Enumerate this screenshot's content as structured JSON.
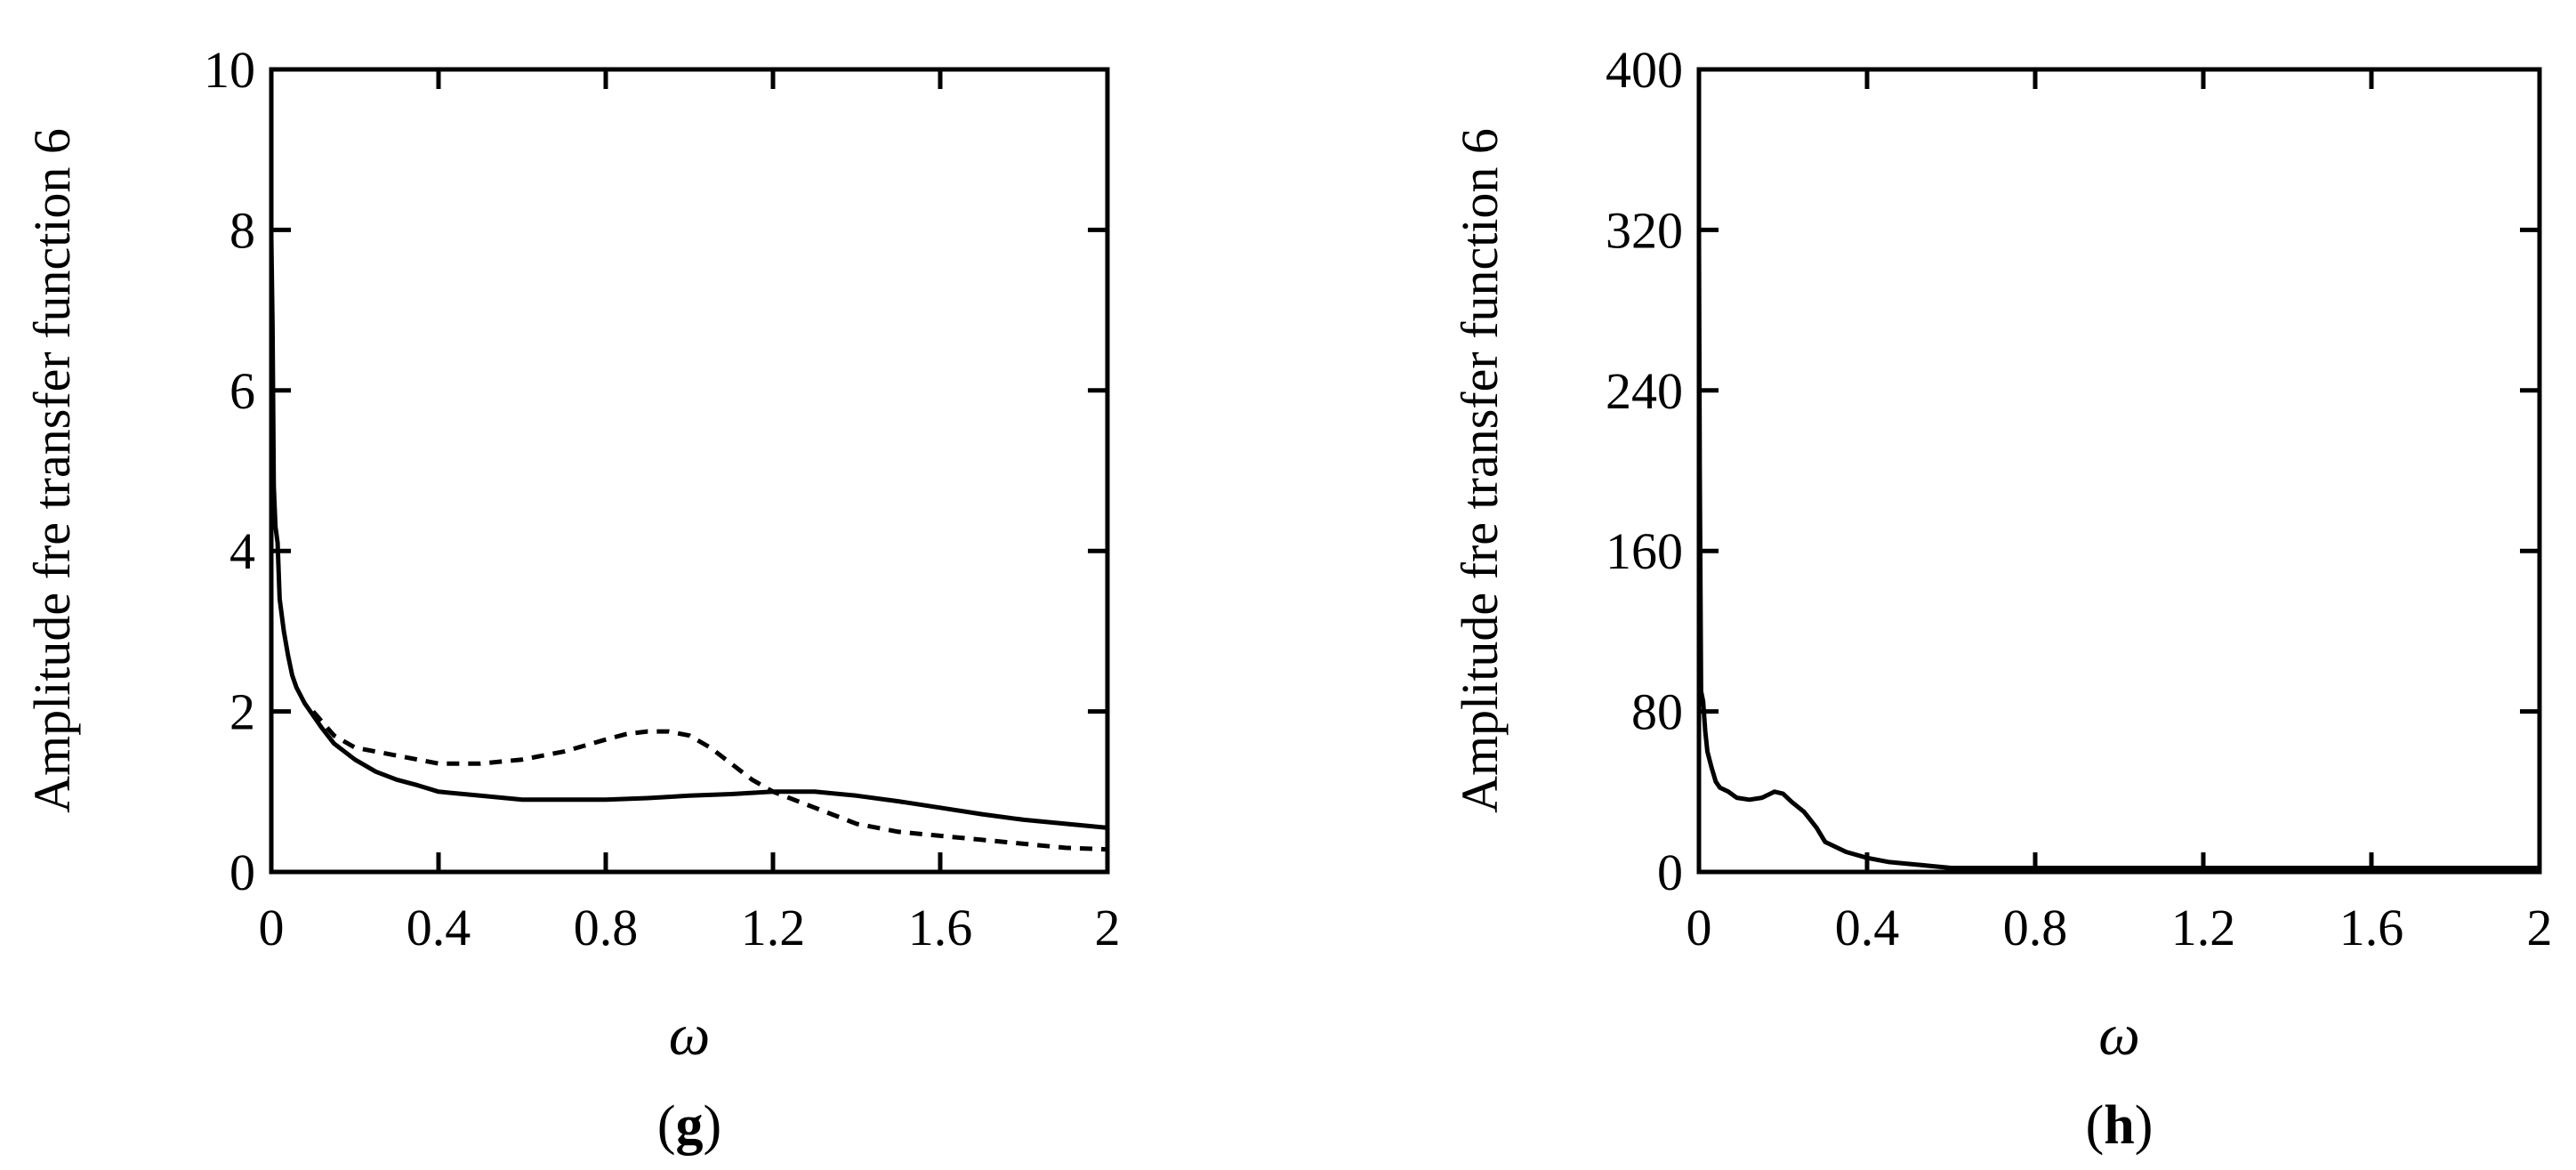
{
  "chart_data": [
    {
      "type": "line",
      "panel": "g",
      "panel_label_open": "(",
      "panel_label_letter": "g",
      "panel_label_close": ")",
      "xlabel": "ω",
      "ylabel": "Amplitude fre transfer function 6",
      "xlim": [
        0,
        2
      ],
      "ylim": [
        0,
        10
      ],
      "xticks": [
        0,
        0.4,
        0.8,
        1.2,
        1.6,
        2
      ],
      "xtick_labels": [
        "0",
        "0.4",
        "0.8",
        "1.2",
        "1.6",
        "2"
      ],
      "yticks": [
        0,
        2,
        4,
        6,
        8,
        10
      ],
      "ytick_labels": [
        "0",
        "2",
        "4",
        "6",
        "8",
        "10"
      ],
      "grid": false,
      "series": [
        {
          "style": "solid",
          "x": [
            0.0,
            0.003,
            0.006,
            0.01,
            0.015,
            0.02,
            0.03,
            0.04,
            0.05,
            0.06,
            0.08,
            0.1,
            0.12,
            0.15,
            0.2,
            0.25,
            0.3,
            0.35,
            0.4,
            0.5,
            0.6,
            0.7,
            0.8,
            0.9,
            1.0,
            1.1,
            1.2,
            1.3,
            1.4,
            1.5,
            1.6,
            1.7,
            1.8,
            1.9,
            2.0
          ],
          "y": [
            7.9,
            6.8,
            4.8,
            4.3,
            4.1,
            3.4,
            3.0,
            2.7,
            2.45,
            2.3,
            2.1,
            1.95,
            1.8,
            1.6,
            1.4,
            1.25,
            1.15,
            1.08,
            1.0,
            0.95,
            0.9,
            0.9,
            0.9,
            0.92,
            0.95,
            0.97,
            1.0,
            1.0,
            0.95,
            0.88,
            0.8,
            0.72,
            0.65,
            0.6,
            0.55
          ]
        },
        {
          "style": "dashed",
          "x": [
            0.1,
            0.15,
            0.2,
            0.3,
            0.4,
            0.5,
            0.6,
            0.7,
            0.8,
            0.85,
            0.9,
            0.95,
            1.0,
            1.05,
            1.1,
            1.15,
            1.2,
            1.3,
            1.4,
            1.5,
            1.6,
            1.7,
            1.8,
            1.9,
            2.0
          ],
          "y": [
            2.0,
            1.7,
            1.55,
            1.45,
            1.35,
            1.35,
            1.4,
            1.5,
            1.65,
            1.72,
            1.75,
            1.75,
            1.7,
            1.55,
            1.35,
            1.15,
            1.0,
            0.8,
            0.6,
            0.5,
            0.45,
            0.4,
            0.35,
            0.3,
            0.28
          ]
        }
      ]
    },
    {
      "type": "line",
      "panel": "h",
      "panel_label_open": "(",
      "panel_label_letter": "h",
      "panel_label_close": ")",
      "xlabel": "ω",
      "ylabel": "Amplitude fre transfer function 6",
      "xlim": [
        0,
        2
      ],
      "ylim": [
        0,
        400
      ],
      "xticks": [
        0,
        0.4,
        0.8,
        1.2,
        1.6,
        2
      ],
      "xtick_labels": [
        "0",
        "0.4",
        "0.8",
        "1.2",
        "1.6",
        "2"
      ],
      "yticks": [
        0,
        80,
        160,
        240,
        320,
        400
      ],
      "ytick_labels": [
        "0",
        "80",
        "160",
        "240",
        "320",
        "400"
      ],
      "grid": false,
      "series": [
        {
          "style": "solid",
          "x": [
            0.0,
            0.002,
            0.005,
            0.01,
            0.015,
            0.02,
            0.03,
            0.04,
            0.05,
            0.07,
            0.09,
            0.12,
            0.15,
            0.18,
            0.2,
            0.22,
            0.25,
            0.28,
            0.3,
            0.35,
            0.4,
            0.45,
            0.5,
            0.55,
            0.6,
            0.8,
            1.0,
            1.2,
            1.4,
            1.6,
            1.8,
            2.0
          ],
          "y": [
            315,
            200,
            90,
            85,
            70,
            60,
            52,
            45,
            42,
            40,
            37,
            36,
            37,
            40,
            39,
            35,
            30,
            22,
            15,
            10,
            7,
            5,
            4,
            3,
            2,
            2,
            2,
            2,
            2,
            2,
            2,
            2
          ]
        }
      ]
    }
  ]
}
